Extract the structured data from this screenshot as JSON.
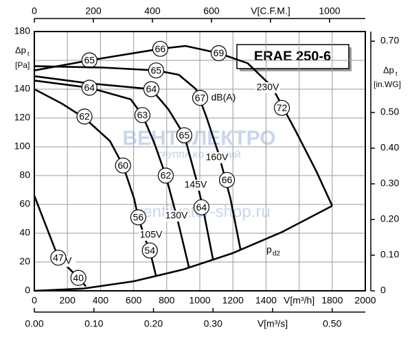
{
  "chart_data": {
    "type": "line",
    "title": "ERAE 250-6",
    "x_label": "V[m³/h]",
    "y_label": {
      "symbol": "Δp",
      "subscript": "t",
      "unit": "[Pa]"
    },
    "x2_label": "V[C.F.M.]",
    "x3_label": "V[m³/s]",
    "y2_label": {
      "symbol": "Δp",
      "subscript": "t",
      "unit": "[in.WG]"
    },
    "unit_label": "dB(A)",
    "watermarks": [
      "ВЕНТЭЛЕКТРО",
      "ГРУППА КОМПАНИЙ",
      "ventilyator-shop.ru"
    ],
    "xlim": [
      0,
      2000
    ],
    "xticks": [
      0,
      200,
      400,
      600,
      800,
      1000,
      1200,
      1400,
      {
        "value": 1600,
        "label": null
      },
      1800,
      2000
    ],
    "ylim": [
      0,
      180
    ],
    "yticks": [
      0,
      20,
      40,
      60,
      80,
      100,
      120,
      140,
      {
        "value": 160,
        "label": null
      },
      180
    ],
    "x2lim": [
      0,
      1121
    ],
    "x2ticks": [
      0,
      200,
      400,
      600,
      {
        "value": 800,
        "label": null
      },
      1000
    ],
    "x3lim": [
      0,
      0.5556
    ],
    "x3ticks": [
      {
        "value": 0,
        "label": "0.00"
      },
      {
        "value": 0.1,
        "label": "0.10"
      },
      {
        "value": 0.2,
        "label": "0.20"
      },
      {
        "value": 0.3,
        "label": "0.30"
      },
      {
        "value": 0.4,
        "label": null
      },
      {
        "value": 0.5,
        "label": "0.50"
      }
    ],
    "y2lim": [
      0,
      0.727
    ],
    "y2ticks": [
      {
        "value": 0,
        "label": "0"
      },
      {
        "value": 0.1,
        "label": "0.10"
      },
      {
        "value": 0.2,
        "label": "0.20"
      },
      {
        "value": 0.3,
        "label": "0.30"
      },
      {
        "value": 0.4,
        "label": "0.40"
      },
      {
        "value": 0.5,
        "label": "0.50"
      },
      {
        "value": 0.6,
        "label": "0.60"
      },
      {
        "value": 0.7,
        "label": "0.70"
      }
    ],
    "grid": true,
    "series": [
      {
        "name": "230V",
        "color": "#000000",
        "x": [
          0,
          333,
          761,
          914,
          1114,
          1289,
          1434,
          1579,
          1704,
          1800
        ],
        "values": [
          153,
          160,
          168,
          170,
          165,
          158,
          142,
          111,
          83,
          59
        ],
        "markers": [
          {
            "x": 333,
            "y": 160,
            "db": 65
          },
          {
            "x": 761,
            "y": 168,
            "db": 66
          },
          {
            "x": 1114,
            "y": 165,
            "db": 69
          },
          {
            "x": 1496,
            "y": 127,
            "db": 72
          }
        ]
      },
      {
        "name": "160V",
        "color": "#000000",
        "x": [
          0,
          416,
          736,
          873,
          977,
          1039,
          1114,
          1185,
          1247
        ],
        "values": [
          156,
          155,
          153,
          150,
          140,
          121,
          95,
          64,
          28
        ],
        "markers": [
          {
            "x": 736,
            "y": 153,
            "db": 65
          },
          {
            "x": 1002,
            "y": 134,
            "db": 67
          },
          {
            "x": 1164,
            "y": 77,
            "db": 66
          }
        ]
      },
      {
        "name": "145V",
        "color": "#000000",
        "x": [
          0,
          333,
          707,
          810,
          906,
          977,
          1018,
          1081
        ],
        "values": [
          149,
          144,
          140,
          126,
          108,
          78,
          58,
          21
        ],
        "markers": [
          {
            "x": 707,
            "y": 140,
            "db": 64
          },
          {
            "x": 906,
            "y": 108,
            "db": 65
          },
          {
            "x": 1010,
            "y": 58,
            "db": 64
          }
        ]
      },
      {
        "name": "130V",
        "color": "#000000",
        "x": [
          0,
          333,
          582,
          653,
          727,
          794,
          864,
          935
        ],
        "values": [
          146,
          141,
          133,
          122,
          102,
          80,
          50,
          16
        ],
        "markers": [
          {
            "x": 333,
            "y": 141,
            "db": 64
          },
          {
            "x": 653,
            "y": 122,
            "db": 63
          },
          {
            "x": 794,
            "y": 80,
            "db": 62
          }
        ]
      },
      {
        "name": "105V",
        "color": "#000000",
        "x": [
          0,
          166,
          303,
          457,
          536,
          603,
          628,
          673,
          698,
          736
        ],
        "values": [
          140,
          130,
          120,
          104,
          87,
          64,
          51,
          35,
          28,
          10
        ],
        "markers": [
          {
            "x": 303,
            "y": 121,
            "db": 62
          },
          {
            "x": 536,
            "y": 87,
            "db": 60
          },
          {
            "x": 628,
            "y": 51,
            "db": 56
          },
          {
            "x": 698,
            "y": 28,
            "db": 54
          }
        ]
      },
      {
        "name": "60V",
        "color": "#000000",
        "x": [
          0,
          145,
          266,
          312
        ],
        "values": [
          66,
          23,
          9,
          3
        ],
        "markers": [
          {
            "x": 145,
            "y": 23,
            "db": 47
          },
          {
            "x": 266,
            "y": 9,
            "db": 40
          }
        ]
      },
      {
        "name": "p",
        "name_subscript": "d2",
        "color": "#000000",
        "x": [
          0,
          300,
          600,
          900,
          1200,
          1500,
          1800
        ],
        "values": [
          0,
          1.6,
          6.6,
          14.8,
          26.2,
          41,
          59
        ]
      }
    ]
  }
}
